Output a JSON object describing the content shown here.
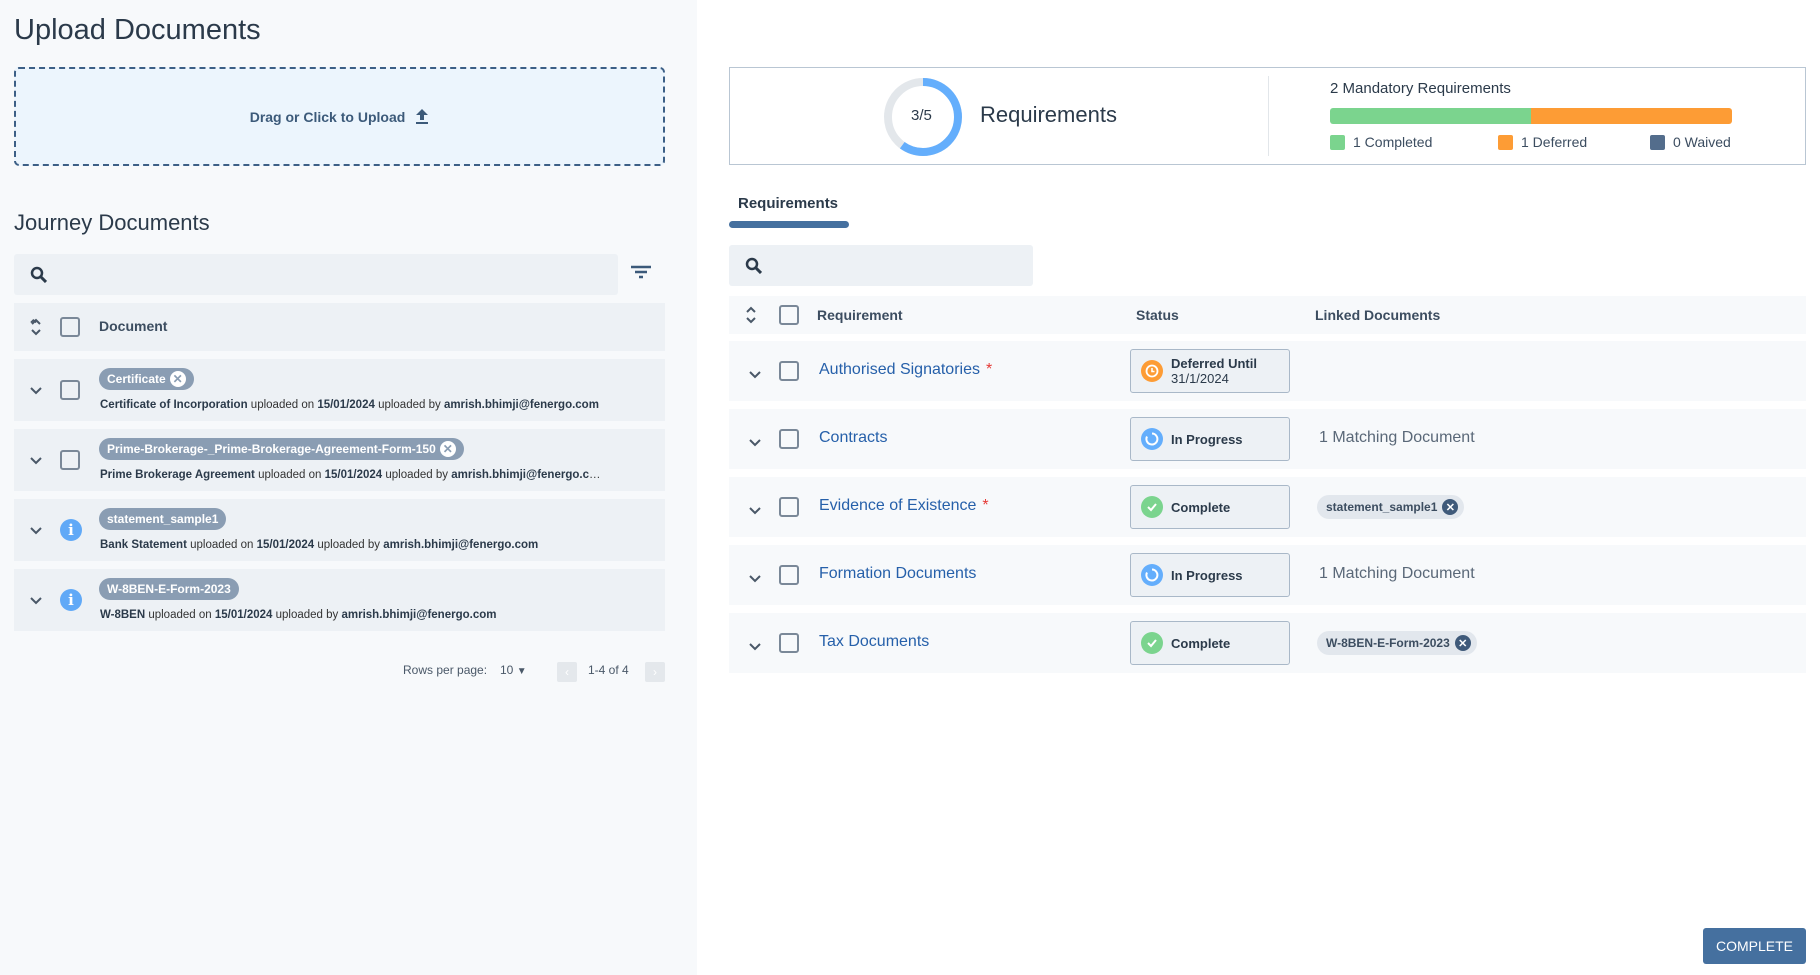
{
  "left": {
    "title": "Upload Documents",
    "dropzone": "Drag or Click to Upload",
    "journey_title": "Journey Documents",
    "search_placeholder": "",
    "column": "Document",
    "docs": [
      {
        "tag": "Certificate",
        "removable": true,
        "icon": "checkbox",
        "type": "Certificate of Incorporation",
        "mid1": " uploaded on ",
        "date": "15/01/2024",
        "mid2": " uploaded by ",
        "user": "amrish.bhimji@fenergo.com"
      },
      {
        "tag": "Prime-Brokerage-_Prime-Brokerage-Agreement-Form-150",
        "removable": true,
        "icon": "checkbox",
        "type": "Prime Brokerage Agreement",
        "mid1": " uploaded on ",
        "date": "15/01/2024",
        "mid2": " uploaded by ",
        "user": "amrish.bhimji@fenergo.com"
      },
      {
        "tag": "statement_sample1",
        "removable": false,
        "icon": "info",
        "type": "Bank Statement",
        "mid1": " uploaded on ",
        "date": "15/01/2024",
        "mid2": " uploaded by ",
        "user": "amrish.bhimji@fenergo.com"
      },
      {
        "tag": "W-8BEN-E-Form-2023",
        "removable": false,
        "icon": "info",
        "type": "W-8BEN",
        "mid1": " uploaded on ",
        "date": "15/01/2024",
        "mid2": " uploaded by ",
        "user": "amrish.bhimji@fenergo.com"
      }
    ],
    "pagination": {
      "rows_label": "Rows per page:",
      "rows_value": "10",
      "range": "1-4 of 4"
    }
  },
  "summary": {
    "progress": "3/5",
    "progress_fraction": 0.6,
    "label": "Requirements",
    "mandatory": "2 Mandatory Requirements",
    "completed": "1 Completed",
    "deferred": "1 Deferred",
    "waived": "0 Waived",
    "colors": {
      "completed": "#7bd48e",
      "deferred": "#fd9c35",
      "waived": "#536d8c",
      "ring": "#64aefc"
    }
  },
  "tabs": [
    {
      "label": "Requirements",
      "active": true
    }
  ],
  "table": {
    "headers": {
      "requirement": "Requirement",
      "status": "Status",
      "linked": "Linked Documents"
    },
    "rows": [
      {
        "name": "Authorised Signatories",
        "mandatory": true,
        "status": "Deferred Until",
        "status2": "31/1/2024",
        "status_type": "deferred",
        "linked": "",
        "linked_pill": ""
      },
      {
        "name": "Contracts",
        "mandatory": false,
        "status": "In Progress",
        "status2": "",
        "status_type": "progress",
        "linked": "1 Matching Document",
        "linked_pill": ""
      },
      {
        "name": "Evidence of Existence",
        "mandatory": true,
        "status": "Complete",
        "status2": "",
        "status_type": "complete",
        "linked": "",
        "linked_pill": "statement_sample1"
      },
      {
        "name": "Formation Documents",
        "mandatory": false,
        "status": "In Progress",
        "status2": "",
        "status_type": "progress",
        "linked": "1 Matching Document",
        "linked_pill": ""
      },
      {
        "name": "Tax Documents",
        "mandatory": false,
        "status": "Complete",
        "status2": "",
        "status_type": "complete",
        "linked": "",
        "linked_pill": "W-8BEN-E-Form-2023"
      }
    ]
  },
  "complete_button": "COMPLETE"
}
